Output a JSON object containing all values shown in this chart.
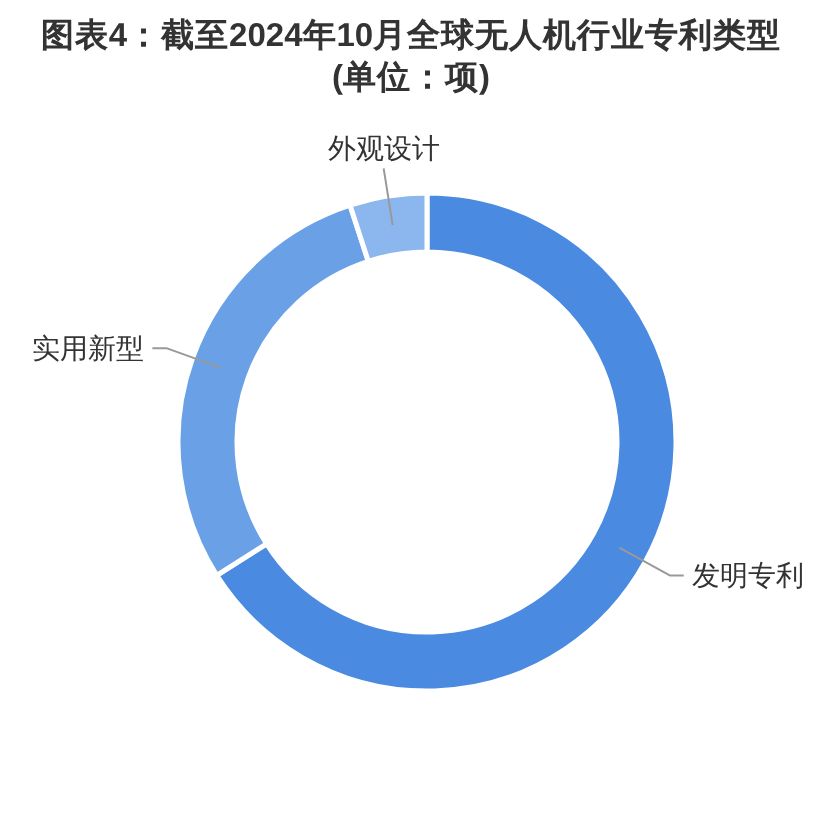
{
  "chart_data": {
    "type": "donut",
    "title": "图表4：截至2024年10月全球无人机行业专利类型",
    "subtitle": "(单位：项)",
    "categories": [
      "发明专利",
      "实用新型",
      "外观设计"
    ],
    "values": [
      66,
      29,
      5
    ],
    "colors": [
      "#4a8ae0",
      "#6aa1e6",
      "#8cb7ee"
    ]
  }
}
